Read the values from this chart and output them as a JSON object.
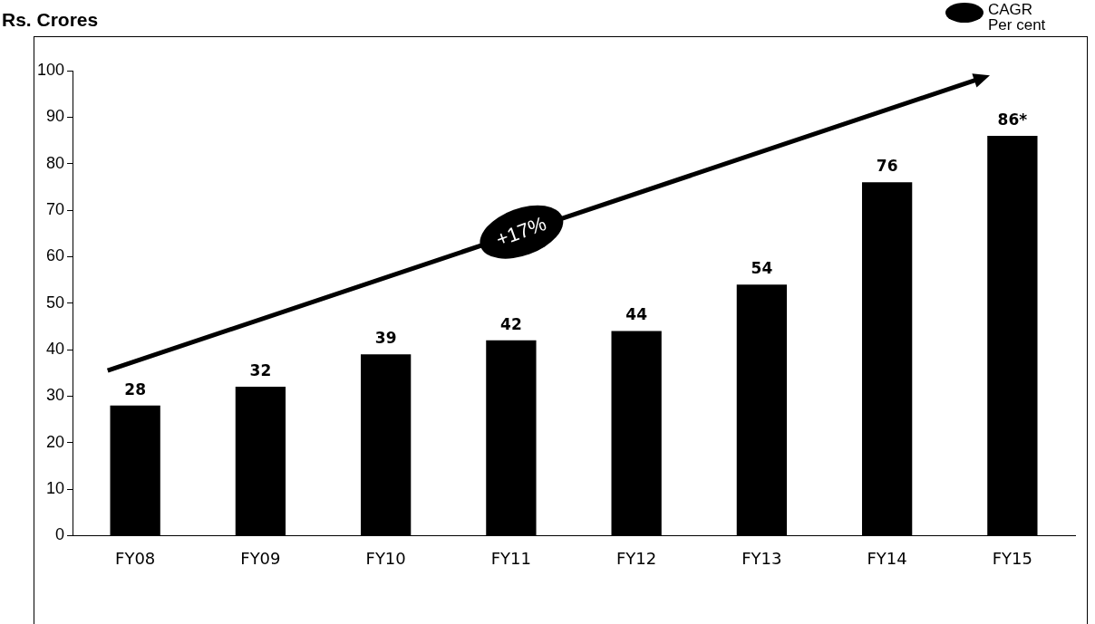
{
  "chart_data": {
    "type": "bar",
    "ylabel": "Rs. Crores",
    "categories": [
      "FY08",
      "FY09",
      "FY10",
      "FY11",
      "FY12",
      "FY13",
      "FY14",
      "FY15"
    ],
    "values": [
      28,
      32,
      39,
      42,
      44,
      54,
      76,
      86
    ],
    "value_labels": [
      "28",
      "32",
      "39",
      "42",
      "44",
      "54",
      "76",
      "86*"
    ],
    "color": "#000000",
    "ylim": [
      0,
      100
    ],
    "yticks": [
      0,
      10,
      20,
      30,
      40,
      50,
      60,
      70,
      80,
      90,
      100
    ],
    "grid": false,
    "annotations": [
      "+17%",
      "CAGR Per cent"
    ]
  }
}
